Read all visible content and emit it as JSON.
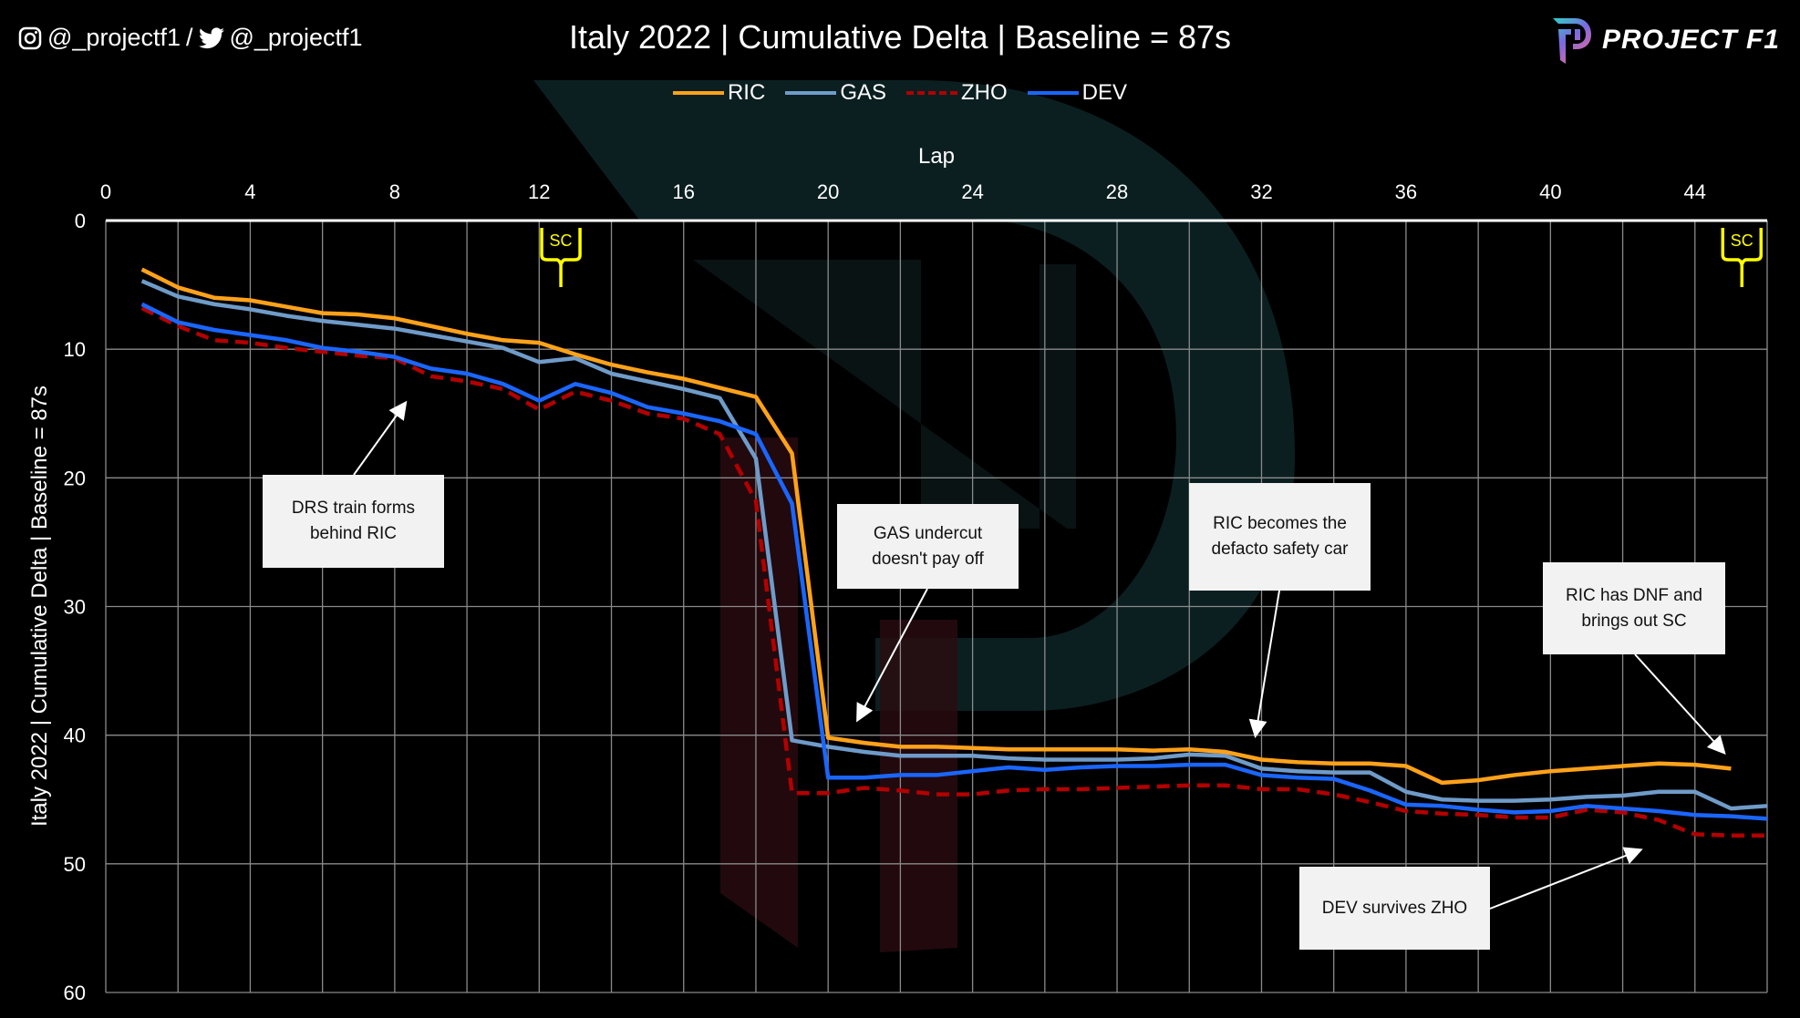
{
  "header": {
    "instagram_handle": "@_projectf1",
    "separator": "/",
    "twitter_handle": "@_projectf1",
    "title": "Italy 2022 | Cumulative Delta | Baseline = 87s",
    "logo_text": "PROJECT F1"
  },
  "chart_data": {
    "type": "line",
    "title": "Italy 2022 | Cumulative Delta | Baseline = 87s",
    "xlabel": "Lap",
    "ylabel": "Italy 2022 | Cumulative Delta | Baseline = 87s",
    "xlim": [
      0,
      46
    ],
    "ylim": [
      0,
      60
    ],
    "y_inverted": true,
    "x_axis_position": "top",
    "x_ticks": [
      0,
      4,
      8,
      12,
      16,
      20,
      24,
      28,
      32,
      36,
      40,
      44
    ],
    "y_ticks": [
      0,
      10,
      20,
      30,
      40,
      50,
      60
    ],
    "grid": true,
    "legend_position": "top",
    "series": [
      {
        "name": "RIC",
        "color": "#ffa21a",
        "dash": false,
        "x_start": 1,
        "values": [
          3.8,
          5.2,
          6.0,
          6.2,
          6.7,
          7.2,
          7.3,
          7.6,
          8.2,
          8.8,
          9.3,
          9.5,
          10.4,
          11.2,
          11.8,
          12.3,
          13.0,
          13.7,
          18.1,
          40.2,
          40.6,
          40.9,
          40.9,
          41.0,
          41.1,
          41.1,
          41.1,
          41.1,
          41.2,
          41.1,
          41.3,
          41.9,
          42.1,
          42.2,
          42.2,
          42.4,
          43.7,
          43.5,
          43.1,
          42.8,
          42.6,
          42.4,
          42.2,
          42.3,
          42.6
        ]
      },
      {
        "name": "GAS",
        "color": "#6f9bc9",
        "dash": false,
        "x_start": 1,
        "values": [
          4.7,
          5.9,
          6.5,
          6.9,
          7.4,
          7.8,
          8.1,
          8.4,
          8.9,
          9.4,
          9.9,
          11.0,
          10.7,
          11.9,
          12.5,
          13.1,
          13.8,
          18.5,
          40.4,
          40.9,
          41.3,
          41.6,
          41.6,
          41.6,
          41.8,
          41.9,
          41.9,
          41.9,
          41.8,
          41.5,
          41.6,
          42.6,
          42.8,
          42.9,
          42.9,
          44.4,
          45.0,
          45.1,
          45.1,
          45.0,
          44.8,
          44.7,
          44.4,
          44.4,
          45.7,
          45.5
        ]
      },
      {
        "name": "ZHO",
        "color": "#b30000",
        "dash": true,
        "x_start": 1,
        "values": [
          6.8,
          8.2,
          9.3,
          9.5,
          9.9,
          10.2,
          10.5,
          10.7,
          12.1,
          12.5,
          13.1,
          14.7,
          13.3,
          14.0,
          15.0,
          15.4,
          16.6,
          21.8,
          44.5,
          44.5,
          44.1,
          44.3,
          44.6,
          44.6,
          44.3,
          44.2,
          44.2,
          44.1,
          44.0,
          43.9,
          43.9,
          44.2,
          44.2,
          44.6,
          45.2,
          45.9,
          46.1,
          46.2,
          46.4,
          46.4,
          45.8,
          46.0,
          46.6,
          47.7,
          47.8,
          47.8
        ]
      },
      {
        "name": "DEV",
        "color": "#1a66ff",
        "dash": false,
        "x_start": 1,
        "values": [
          6.5,
          7.9,
          8.5,
          8.9,
          9.3,
          9.9,
          10.2,
          10.6,
          11.5,
          11.9,
          12.7,
          14.0,
          12.7,
          13.4,
          14.5,
          15.0,
          15.6,
          16.6,
          22.0,
          43.3,
          43.3,
          43.1,
          43.1,
          42.8,
          42.5,
          42.7,
          42.5,
          42.4,
          42.4,
          42.3,
          42.3,
          43.1,
          43.3,
          43.4,
          44.3,
          45.4,
          45.5,
          45.8,
          46.0,
          45.9,
          45.5,
          45.7,
          45.9,
          46.2,
          46.3,
          46.5
        ]
      }
    ],
    "sc_markers": [
      {
        "label": "SC",
        "lap": 12.6
      },
      {
        "label": "SC",
        "lap": 45.3
      }
    ],
    "annotations": [
      {
        "text": "DRS train forms\nbehind RIC"
      },
      {
        "text": "GAS undercut\ndoesn't pay off"
      },
      {
        "text": "RIC becomes the\ndefacto safety car"
      },
      {
        "text": "RIC has DNF and\nbrings out SC"
      },
      {
        "text": "DEV survives ZHO"
      }
    ]
  }
}
